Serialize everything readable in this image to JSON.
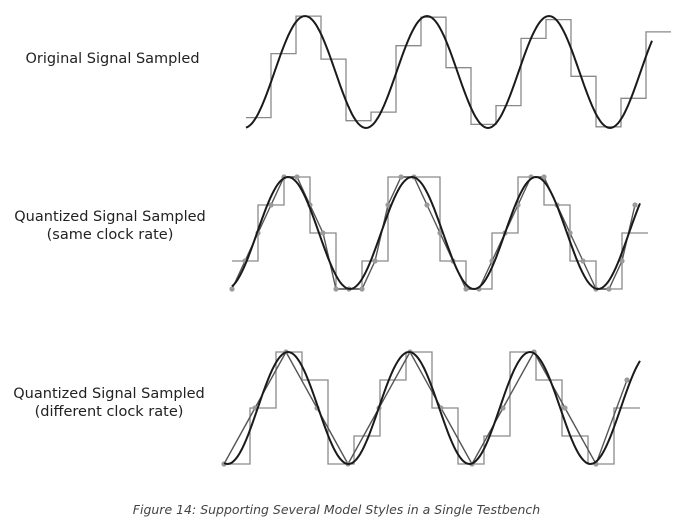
{
  "panels": [
    {
      "label_lines": [
        "Original Signal Sampled"
      ]
    },
    {
      "label_lines": [
        "Quantized Signal Sampled",
        "(same clock rate)"
      ]
    },
    {
      "label_lines": [
        "Quantized Signal Sampled",
        "(different clock rate)"
      ]
    }
  ],
  "caption": "Figure 14: Supporting Several Model Styles in a Single Testbench",
  "colors": {
    "sine": "#1a1a1a",
    "steps": "#8a8a8a",
    "dots": "#9a9a9a",
    "text": "#222222"
  }
}
